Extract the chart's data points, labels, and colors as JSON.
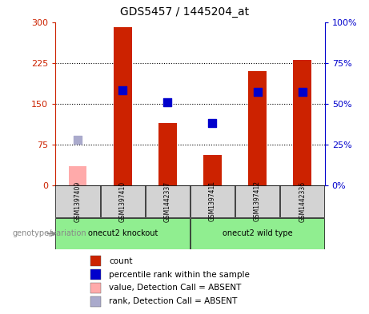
{
  "title": "GDS5457 / 1445204_at",
  "samples": [
    "GSM1397409",
    "GSM1397410",
    "GSM1442337",
    "GSM1397411",
    "GSM1397412",
    "GSM1442336"
  ],
  "counts": [
    35,
    290,
    115,
    55,
    210,
    230
  ],
  "percentiles": [
    28,
    58,
    51,
    38,
    57,
    57
  ],
  "absent_flags": [
    true,
    false,
    false,
    false,
    false,
    false
  ],
  "bar_color_present": "#cc2200",
  "bar_color_absent": "#ffaaaa",
  "dot_color_present": "#0000cc",
  "dot_color_absent": "#aaaacc",
  "ylim_left": [
    0,
    300
  ],
  "ylim_right": [
    0,
    100
  ],
  "yticks_left": [
    0,
    75,
    150,
    225,
    300
  ],
  "yticks_right": [
    0,
    25,
    50,
    75,
    100
  ],
  "ytick_labels_left": [
    "0",
    "75",
    "150",
    "225",
    "300"
  ],
  "ytick_labels_right": [
    "0%",
    "25%",
    "50%",
    "75%",
    "100%"
  ],
  "groups": [
    {
      "label": "onecut2 knockout",
      "indices": [
        0,
        1,
        2
      ],
      "color": "#90ee90"
    },
    {
      "label": "onecut2 wild type",
      "indices": [
        3,
        4,
        5
      ],
      "color": "#90ee90"
    }
  ],
  "group_variation_label": "genotype/variation",
  "legend_items": [
    {
      "label": "count",
      "color": "#cc2200"
    },
    {
      "label": "percentile rank within the sample",
      "color": "#0000cc"
    },
    {
      "label": "value, Detection Call = ABSENT",
      "color": "#ffaaaa"
    },
    {
      "label": "rank, Detection Call = ABSENT",
      "color": "#aaaacc"
    }
  ],
  "background_color": "#ffffff",
  "grid_yticks": [
    75,
    150,
    225
  ]
}
